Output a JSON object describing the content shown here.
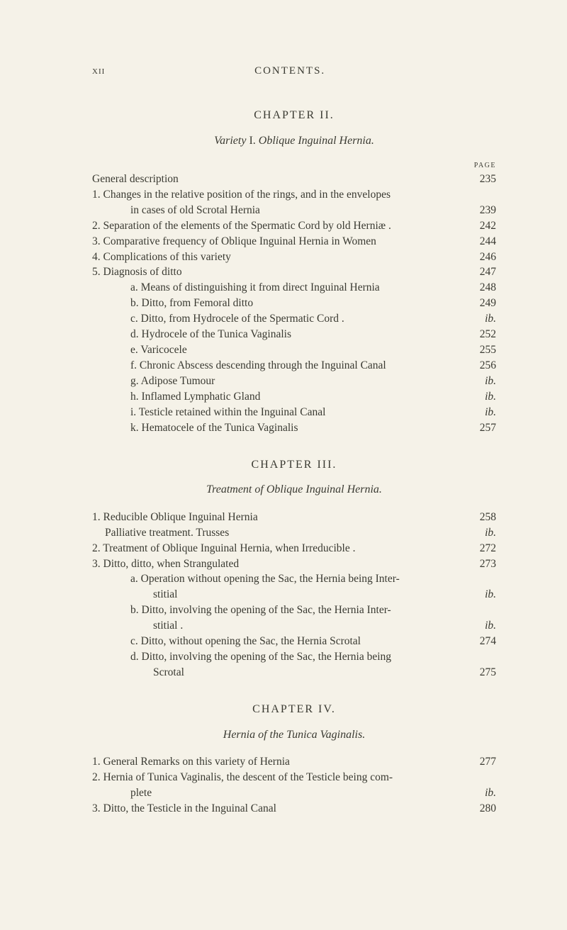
{
  "runningHead": {
    "pageNum": "xii",
    "title": "CONTENTS."
  },
  "pageLabel": "PAGE",
  "chapters": [
    {
      "title": "CHAPTER II.",
      "subtitlePrefix": "Variety",
      "subtitleRoman": " I.   ",
      "subtitleItalic": "Oblique Inguinal Hernia.",
      "entries": [
        {
          "indent": "indent-0",
          "label": "General description",
          "page": "235"
        },
        {
          "indent": "indent-0",
          "label": "1. Changes in the relative position of the rings, and in the envelopes",
          "page": ""
        },
        {
          "indent": "continuation",
          "label": "in cases of old Scrotal Hernia",
          "page": "239"
        },
        {
          "indent": "indent-0",
          "label": "2. Separation of the elements of the Spermatic Cord by old Herniæ .",
          "page": "242"
        },
        {
          "indent": "indent-0",
          "label": "3. Comparative frequency of Oblique Inguinal Hernia in Women",
          "page": "244"
        },
        {
          "indent": "indent-0",
          "label": "4. Complications of this variety",
          "page": "246"
        },
        {
          "indent": "indent-0",
          "label": "5. Diagnosis of ditto",
          "page": "247"
        },
        {
          "indent": "indent-2",
          "label": "a. Means of distinguishing it from direct Inguinal Hernia",
          "page": "248"
        },
        {
          "indent": "indent-2",
          "label": "b. Ditto,          from Femoral ditto",
          "page": "249"
        },
        {
          "indent": "indent-2",
          "label": "c. Ditto,          from Hydrocele of the Spermatic Cord   .",
          "page": "ib.",
          "italic": true
        },
        {
          "indent": "indent-2",
          "label": "d. Hydrocele of the Tunica Vaginalis",
          "page": "252"
        },
        {
          "indent": "indent-2",
          "label": "e. Varicocele",
          "page": "255"
        },
        {
          "indent": "indent-2",
          "label": "f. Chronic Abscess descending through the Inguinal Canal",
          "page": "256"
        },
        {
          "indent": "indent-2",
          "label": "g. Adipose Tumour",
          "page": "ib.",
          "italic": true
        },
        {
          "indent": "indent-2",
          "label": "h. Inflamed Lymphatic Gland",
          "page": "ib.",
          "italic": true
        },
        {
          "indent": "indent-2",
          "label": "i. Testicle retained within the Inguinal Canal",
          "page": "ib.",
          "italic": true
        },
        {
          "indent": "indent-2",
          "label": "k. Hematocele of the Tunica Vaginalis",
          "page": "257"
        }
      ]
    },
    {
      "title": "CHAPTER III.",
      "subtitlePrefix": "",
      "subtitleRoman": "",
      "subtitleItalic": "Treatment of Oblique Inguinal Hernia.",
      "entries": [
        {
          "indent": "indent-0",
          "label": "1. Reducible Oblique Inguinal Hernia",
          "page": "258"
        },
        {
          "indent": "indent-1",
          "label": "Palliative treatment.     Trusses",
          "page": "ib.",
          "italic": true
        },
        {
          "indent": "indent-0",
          "label": "2. Treatment of Oblique Inguinal Hernia, when Irreducible .",
          "page": "272"
        },
        {
          "indent": "indent-0",
          "label": "3. Ditto,          ditto,          when Strangulated",
          "page": "273"
        },
        {
          "indent": "indent-2",
          "label": "a. Operation without opening the Sac, the Hernia being Inter-",
          "page": ""
        },
        {
          "indent": "indent-3",
          "label": "stitial",
          "page": "ib.",
          "italic": true
        },
        {
          "indent": "indent-2",
          "label": "b. Ditto,     involving the opening of the Sac, the Hernia Inter-",
          "page": ""
        },
        {
          "indent": "indent-3",
          "label": "stitial .",
          "page": "ib.",
          "italic": true
        },
        {
          "indent": "indent-2",
          "label": "c. Ditto,     without opening the Sac, the Hernia Scrotal",
          "page": "274"
        },
        {
          "indent": "indent-2",
          "label": "d. Ditto,     involving the opening of the Sac, the Hernia being",
          "page": ""
        },
        {
          "indent": "indent-3",
          "label": "Scrotal",
          "page": "275"
        }
      ]
    },
    {
      "title": "CHAPTER IV.",
      "subtitlePrefix": "",
      "subtitleRoman": "",
      "subtitleItalic": "Hernia of the Tunica Vaginalis.",
      "entries": [
        {
          "indent": "indent-0",
          "label": "1. General Remarks on this variety of Hernia",
          "page": "277"
        },
        {
          "indent": "indent-0",
          "label": "2. Hernia of Tunica Vaginalis, the descent of the Testicle being com-",
          "page": ""
        },
        {
          "indent": "indent-4",
          "label": "plete",
          "page": "ib.",
          "italic": true
        },
        {
          "indent": "indent-0",
          "label": "3. Ditto,          the Testicle in the Inguinal Canal",
          "page": "280"
        }
      ]
    }
  ]
}
